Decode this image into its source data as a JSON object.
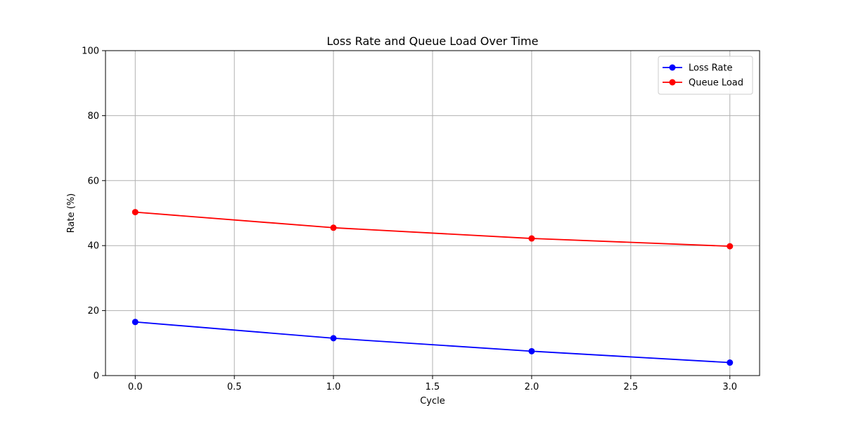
{
  "chart_data": {
    "type": "line",
    "title": "Loss Rate and Queue Load Over Time",
    "xlabel": "Cycle",
    "ylabel": "Rate (%)",
    "xlim": [
      -0.15,
      3.15
    ],
    "ylim": [
      0,
      100
    ],
    "x_ticks": [
      0.0,
      0.5,
      1.0,
      1.5,
      2.0,
      2.5,
      3.0
    ],
    "x_tick_labels": [
      "0.0",
      "0.5",
      "1.0",
      "1.5",
      "2.0",
      "2.5",
      "3.0"
    ],
    "y_ticks": [
      0,
      20,
      40,
      60,
      80,
      100
    ],
    "y_tick_labels": [
      "0",
      "20",
      "40",
      "60",
      "80",
      "100"
    ],
    "grid": true,
    "legend_position": "top-right",
    "x": [
      0,
      1,
      2,
      3
    ],
    "series": [
      {
        "name": "Loss Rate",
        "color": "#0000ff",
        "marker": "circle",
        "values": [
          16.5,
          11.5,
          7.5,
          4.0
        ]
      },
      {
        "name": "Queue Load",
        "color": "#ff0000",
        "marker": "circle",
        "values": [
          50.3,
          45.5,
          42.2,
          39.8
        ]
      }
    ]
  }
}
